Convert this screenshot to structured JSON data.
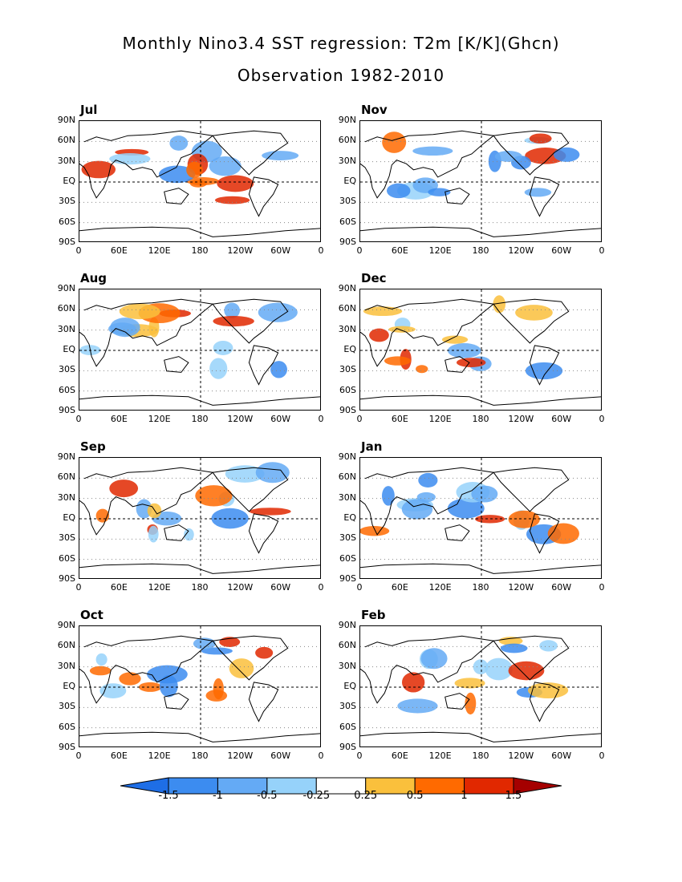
{
  "title": "Monthly Nino3.4 SST regression: T2m [K/K](Ghcn)",
  "subtitle": "Observation 1982-2010",
  "lat_labels": [
    "90N",
    "60N",
    "30N",
    "EQ",
    "30S",
    "60S",
    "90S"
  ],
  "lon_labels": [
    "0",
    "60E",
    "120E",
    "180",
    "120W",
    "60W",
    "0"
  ],
  "panels": [
    {
      "month": "Jul"
    },
    {
      "month": "Nov"
    },
    {
      "month": "Aug"
    },
    {
      "month": "Dec"
    },
    {
      "month": "Sep"
    },
    {
      "month": "Jan"
    },
    {
      "month": "Oct"
    },
    {
      "month": "Feb"
    }
  ],
  "colorbar": {
    "labels": [
      "-1.5",
      "-1",
      "-0.5",
      "-0.25",
      "0.25",
      "0.5",
      "1",
      "1.5"
    ],
    "colors": [
      "#1e6ee6",
      "#3c8cf0",
      "#64aaf5",
      "#96d2fa",
      "#ffffff",
      "#fac03c",
      "#ff6a00",
      "#e12800",
      "#a50000"
    ]
  },
  "chart_data": {
    "type": "heatmap",
    "variable": "T2m regression on Nino3.4 SST",
    "units": "K/K",
    "source": "Ghcn",
    "period": "1982-2010",
    "months": [
      "Jul",
      "Nov",
      "Aug",
      "Dec",
      "Sep",
      "Jan",
      "Oct",
      "Feb"
    ],
    "xlim": [
      0,
      360
    ],
    "ylim": [
      -90,
      90
    ],
    "color_levels": [
      -1.5,
      -1,
      -0.5,
      -0.25,
      0.25,
      0.5,
      1,
      1.5
    ]
  }
}
